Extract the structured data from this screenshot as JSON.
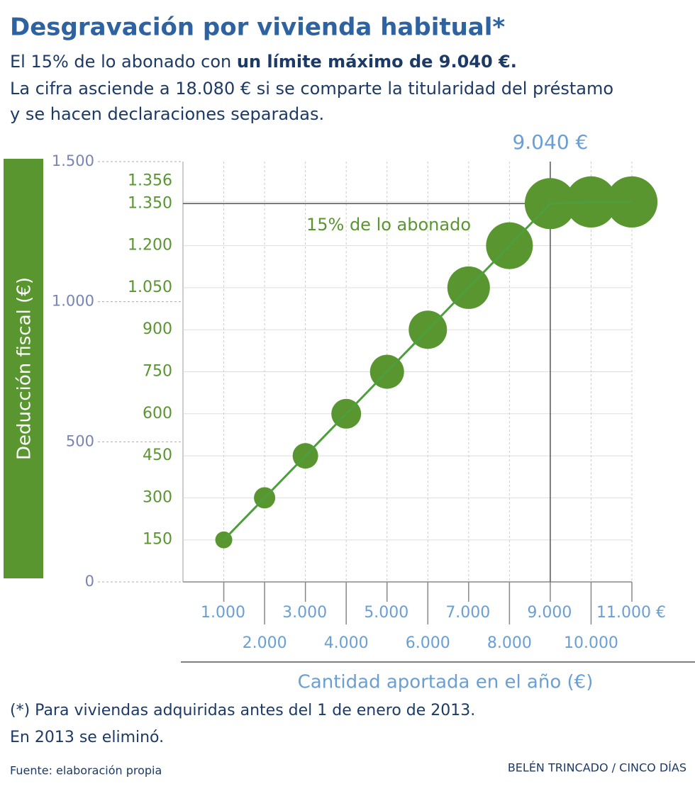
{
  "chart_data": {
    "type": "bubble",
    "title": "Desgravación por vivienda habitual*",
    "subtitle": [
      "El 15% de lo abonado con ",
      "un límite máximo de 9.040 €.",
      "La cifra asciende a 18.080 € si se comparte la titularidad del préstamo",
      "y se hacen declaraciones separadas."
    ],
    "x": [
      1000,
      2000,
      3000,
      4000,
      5000,
      6000,
      7000,
      8000,
      9000,
      10000,
      11000
    ],
    "values": [
      150,
      300,
      450,
      600,
      750,
      900,
      1050,
      1200,
      1350,
      1356,
      1356
    ],
    "color": "#5a9630",
    "line_color": "#4e9e3e",
    "xlim": [
      0,
      11000
    ],
    "ylim": [
      0,
      1500
    ],
    "yticks": [
      0,
      {
        "value": 500,
        "label": "500"
      },
      {
        "value": 1000,
        "label": "1.000"
      },
      {
        "value": 1500,
        "label": "1.500"
      }
    ],
    "highlight_yticks": [
      150,
      300,
      450,
      600,
      750,
      900,
      {
        "value": 1050,
        "label": "1.050"
      },
      {
        "value": 1200,
        "label": "1.200"
      },
      {
        "value": 1350,
        "label": "1.350"
      },
      {
        "value": 1356,
        "label": "1.356"
      }
    ],
    "xticks": [
      {
        "value": 1000,
        "label": "1.000"
      },
      {
        "value": 2000,
        "label": "2.000"
      },
      {
        "value": 3000,
        "label": "3.000"
      },
      {
        "value": 4000,
        "label": "4.000"
      },
      {
        "value": 5000,
        "label": "5.000"
      },
      {
        "value": 6000,
        "label": "6.000"
      },
      {
        "value": 7000,
        "label": "7.000"
      },
      {
        "value": 8000,
        "label": "8.000"
      },
      {
        "value": 9000,
        "label": "9.000"
      },
      {
        "value": 10000,
        "label": "10.000"
      },
      {
        "value": 11000,
        "label": "11.000 €"
      }
    ],
    "xlabel": "Cantidad aportada en el año (€)",
    "ylabel": "Deducción fiscal (€)",
    "reference_lines": {
      "x": 9000,
      "y": 1350
    },
    "annotations": [
      {
        "text": "9.040 €"
      },
      {
        "text": "15% de lo abonado"
      }
    ],
    "notes": [
      "(*) Para viviendas adquiridas antes del 1 de enero de 2013.",
      "En 2013 se eliminó."
    ],
    "source": "Fuente: elaboración propia",
    "credit": "BELÉN TRINCADO / CINCO DÍAS"
  }
}
